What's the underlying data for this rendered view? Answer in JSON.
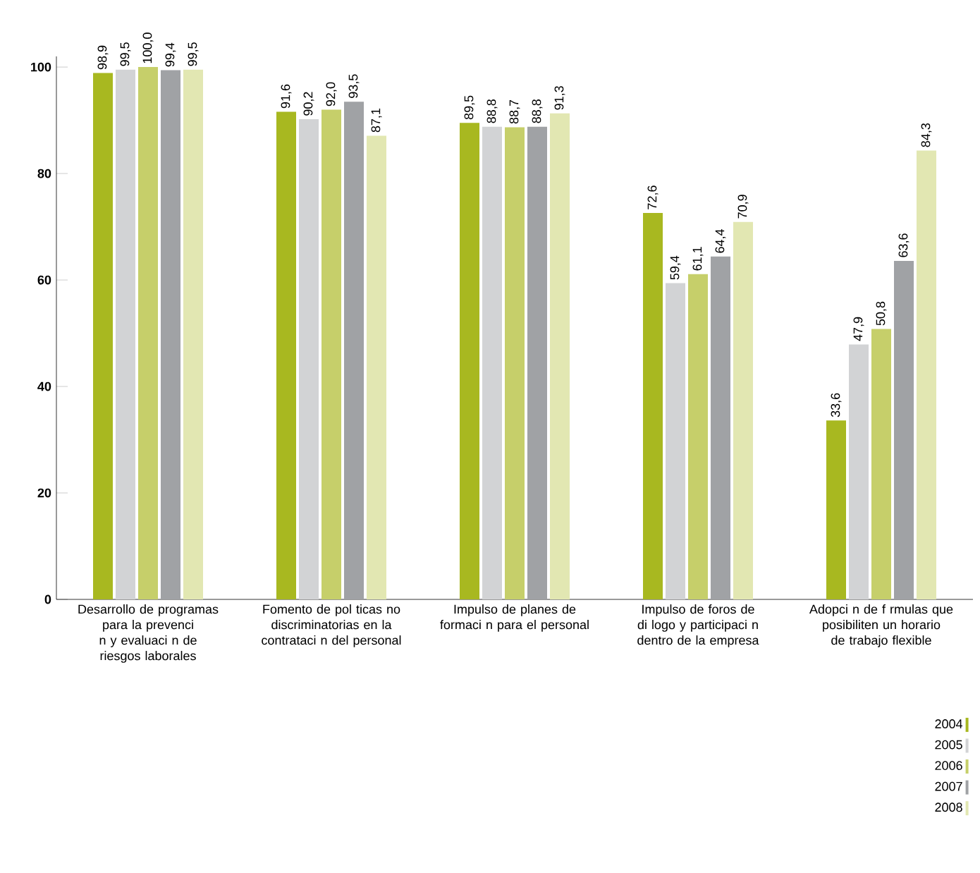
{
  "chart_data": {
    "type": "bar",
    "categories": [
      "Desarrollo de programas para la prevenci n y evaluaci n de riesgos laborales",
      "Fomento de pol ticas no discriminatorias en la contrataci n del personal",
      "Impulso de planes de formaci n para el personal",
      "Impulso de foros de di logo y participaci n dentro de la empresa",
      "Adopci n de f rmulas que posibiliten un horario de trabajo flexible"
    ],
    "series": [
      {
        "name": "2004",
        "color": "#a8b820",
        "values": [
          98.9,
          91.6,
          89.5,
          72.6,
          33.6
        ],
        "value_labels": [
          "98,9",
          "91,6",
          "89,5",
          "72,6",
          "33,6"
        ]
      },
      {
        "name": "2005",
        "color": "#d2d3d5",
        "values": [
          99.5,
          90.2,
          88.8,
          59.4,
          47.9
        ],
        "value_labels": [
          "99,5",
          "90,2",
          "88,8",
          "59,4",
          "47,9"
        ]
      },
      {
        "name": "2006",
        "color": "#c6cf6a",
        "values": [
          100.0,
          92.0,
          88.7,
          61.1,
          50.8
        ],
        "value_labels": [
          "100,0",
          "92,0",
          "88,7",
          "61,1",
          "50,8"
        ]
      },
      {
        "name": "2007",
        "color": "#a0a2a5",
        "values": [
          99.4,
          93.5,
          88.8,
          64.4,
          63.6
        ],
        "value_labels": [
          "99,4",
          "93,5",
          "88,8",
          "64,4",
          "63,6"
        ]
      },
      {
        "name": "2008",
        "color": "#e2e7b2",
        "values": [
          99.5,
          87.1,
          91.3,
          70.9,
          84.3
        ],
        "value_labels": [
          "99,5",
          "87,1",
          "91,3",
          "70,9",
          "84,3"
        ]
      }
    ],
    "ylim": [
      0,
      102
    ],
    "yticks": [
      0,
      20,
      40,
      60,
      80,
      100
    ],
    "grid": false,
    "legend": "bottom right"
  }
}
